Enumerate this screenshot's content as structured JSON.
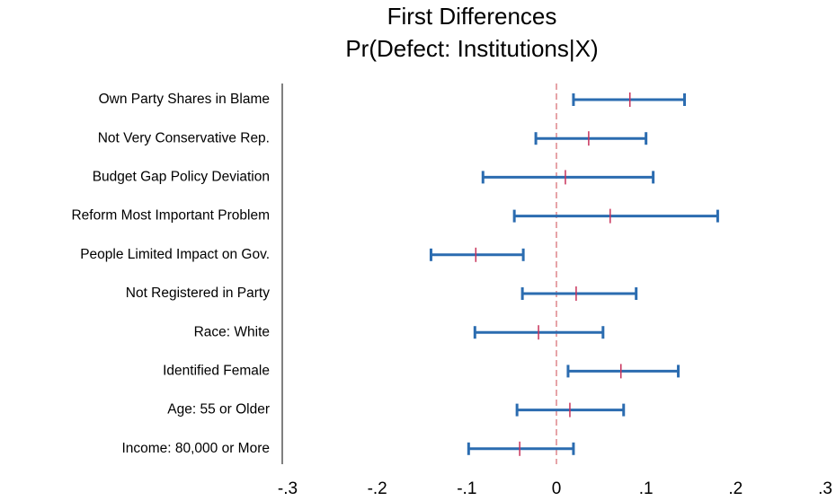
{
  "chart_data": {
    "type": "interval",
    "title": "First Differences",
    "subtitle": "Pr(Defect: Institutions|X)",
    "categories": [
      "Own Party Shares in Blame",
      "Not Very Conservative Rep.",
      "Budget Gap Policy Deviation",
      "Reform Most Important Problem",
      "People Limited Impact on Gov.",
      "Not Registered in Party",
      "Race: White",
      "Identified Female",
      "Age: 55 or Older",
      "Income: 80,000 or More"
    ],
    "series": [
      {
        "color": "#2b6cb0",
        "point_color": "#c8325a",
        "values": [
          0.082,
          0.036,
          0.01,
          0.06,
          -0.09,
          0.022,
          -0.02,
          0.072,
          0.015,
          -0.041
        ],
        "lower": [
          0.019,
          -0.023,
          -0.082,
          -0.047,
          -0.14,
          -0.038,
          -0.091,
          0.013,
          -0.044,
          -0.098
        ],
        "upper": [
          0.143,
          0.1,
          0.108,
          0.18,
          -0.037,
          0.089,
          0.052,
          0.136,
          0.075,
          0.019
        ]
      }
    ],
    "reference_line": 0,
    "reference_color": "#d9737a",
    "xlim": [
      -0.3,
      0.3
    ],
    "xticks": [
      {
        "value": -0.3,
        "label": "-.3"
      },
      {
        "value": -0.2,
        "label": "-.2"
      },
      {
        "value": -0.1,
        "label": "-.1"
      },
      0,
      {
        "value": 0.1,
        "label": ".1"
      },
      {
        "value": 0.2,
        "label": ".2"
      },
      {
        "value": 0.3,
        "label": ".3"
      }
    ]
  }
}
